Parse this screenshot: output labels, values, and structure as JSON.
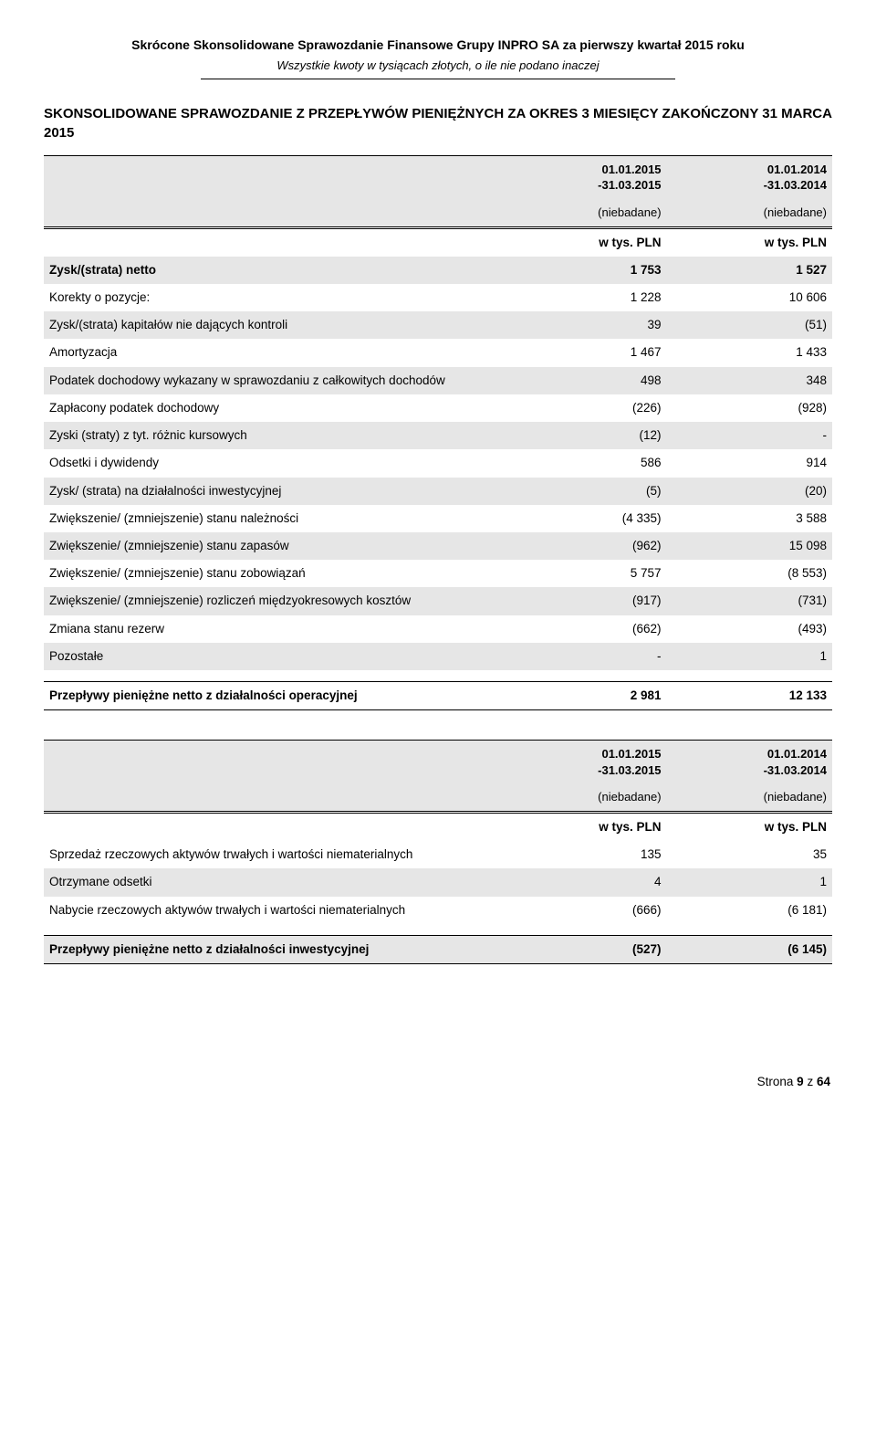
{
  "header": {
    "title": "Skrócone Skonsolidowane Sprawozdanie Finansowe Grupy INPRO SA za pierwszy kwartał 2015 roku",
    "subtitle": "Wszystkie kwoty w tysiącach złotych, o ile nie podano inaczej"
  },
  "section_title": "SKONSOLIDOWANE SPRAWOZDANIE Z PRZEPŁYWÓW PIENIĘŻNYCH ZA OKRES 3 MIESIĘCY ZAKOŃCZONY 31 MARCA 2015",
  "periods": {
    "p1_l1": "01.01.2015",
    "p1_l2": "-31.03.2015",
    "p2_l1": "01.01.2014",
    "p2_l2": "-31.03.2014",
    "audit": "(niebadane)",
    "unit": "w tys. PLN"
  },
  "op_rows": [
    {
      "label": "Zysk/(strata) netto",
      "v1": "1 753",
      "v2": "1 527",
      "shaded": true,
      "bold": true
    },
    {
      "label": "Korekty o pozycje:",
      "v1": "1 228",
      "v2": "10 606"
    },
    {
      "label": "Zysk/(strata) kapitałów nie dających kontroli",
      "v1": "39",
      "v2": "(51)",
      "shaded": true
    },
    {
      "label": "Amortyzacja",
      "v1": "1 467",
      "v2": "1 433"
    },
    {
      "label": "Podatek dochodowy wykazany w sprawozdaniu z całkowitych dochodów",
      "v1": "498",
      "v2": "348",
      "shaded": true
    },
    {
      "label": "Zapłacony podatek dochodowy",
      "v1": "(226)",
      "v2": "(928)"
    },
    {
      "label": "Zyski (straty) z tyt. różnic kursowych",
      "v1": "(12)",
      "v2": "-",
      "shaded": true
    },
    {
      "label": "Odsetki i dywidendy",
      "v1": "586",
      "v2": "914"
    },
    {
      "label": "Zysk/ (strata) na działalności inwestycyjnej",
      "v1": "(5)",
      "v2": "(20)",
      "shaded": true
    },
    {
      "label": "Zwiększenie/ (zmniejszenie) stanu należności",
      "v1": "(4 335)",
      "v2": "3 588"
    },
    {
      "label": "Zwiększenie/ (zmniejszenie) stanu zapasów",
      "v1": "(962)",
      "v2": "15 098",
      "shaded": true
    },
    {
      "label": "Zwiększenie/ (zmniejszenie) stanu zobowiązań",
      "v1": "5 757",
      "v2": "(8 553)"
    },
    {
      "label": "Zwiększenie/ (zmniejszenie) rozliczeń międzyokresowych kosztów",
      "v1": "(917)",
      "v2": "(731)",
      "shaded": true
    },
    {
      "label": "Zmiana stanu rezerw",
      "v1": "(662)",
      "v2": "(493)"
    },
    {
      "label": "Pozostałe",
      "v1": "-",
      "v2": "1",
      "shaded": true
    }
  ],
  "op_total": {
    "label": "Przepływy pieniężne netto z działalności operacyjnej",
    "v1": "2 981",
    "v2": "12 133"
  },
  "inv_rows": [
    {
      "label": "Sprzedaż rzeczowych aktywów trwałych i wartości niematerialnych",
      "v1": "135",
      "v2": "35"
    },
    {
      "label": "Otrzymane odsetki",
      "v1": "4",
      "v2": "1",
      "shaded": true
    },
    {
      "label": "Nabycie rzeczowych aktywów trwałych i wartości niematerialnych",
      "v1": "(666)",
      "v2": "(6 181)"
    }
  ],
  "inv_total": {
    "label": "Przepływy pieniężne netto z działalności inwestycyjnej",
    "v1": "(527)",
    "v2": "(6 145)"
  },
  "footer": {
    "label": "Strona",
    "page": "9",
    "of_word": "z",
    "total": "64"
  }
}
